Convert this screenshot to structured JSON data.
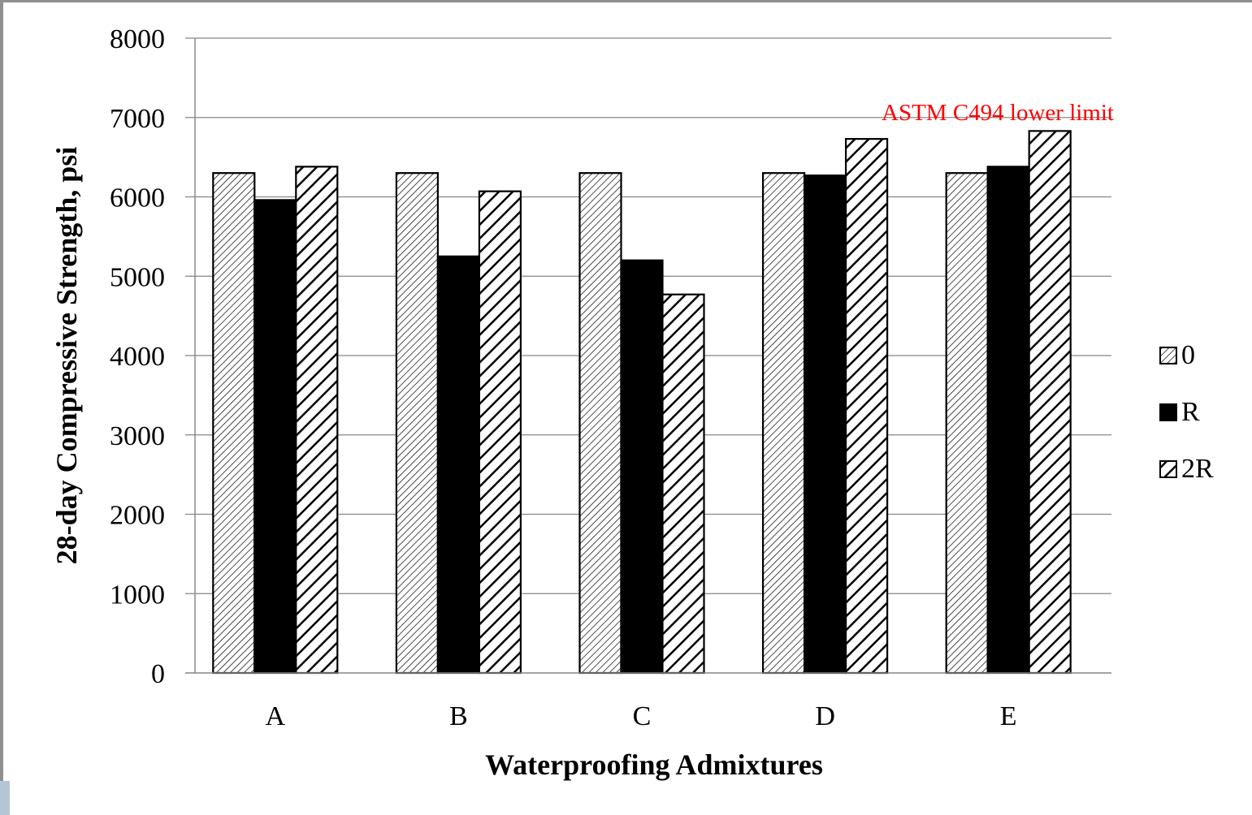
{
  "chart_data": {
    "type": "bar",
    "title": "",
    "xlabel": "Waterproofing Admixtures",
    "ylabel": "28-day Compressive Strength, psi",
    "categories": [
      "A",
      "B",
      "C",
      "D",
      "E"
    ],
    "ylim": [
      0,
      8000
    ],
    "yticks": [
      0,
      1000,
      2000,
      3000,
      4000,
      5000,
      6000,
      7000,
      8000
    ],
    "ytick_labels": [
      "0",
      "1000",
      "2000",
      "3000",
      "4000",
      "5000",
      "6000",
      "7000",
      "8000"
    ],
    "grid": "horizontal",
    "legend_position": "right",
    "series": [
      {
        "name": "0",
        "pattern": "fine-hatch",
        "values": [
          6300,
          6300,
          6300,
          6300,
          6300
        ]
      },
      {
        "name": "R",
        "pattern": "solid-black",
        "values": [
          5960,
          5250,
          5200,
          6270,
          6380
        ]
      },
      {
        "name": "2R",
        "pattern": "wide-hatch",
        "values": [
          6380,
          6070,
          4770,
          6730,
          6830
        ]
      }
    ],
    "annotation": {
      "text": "ASTM  C494 lower limit",
      "color": "#ff0000"
    }
  },
  "colors": {
    "bar_outline": "#000000",
    "gridline": "#868686",
    "annotation": "#ff0000"
  }
}
